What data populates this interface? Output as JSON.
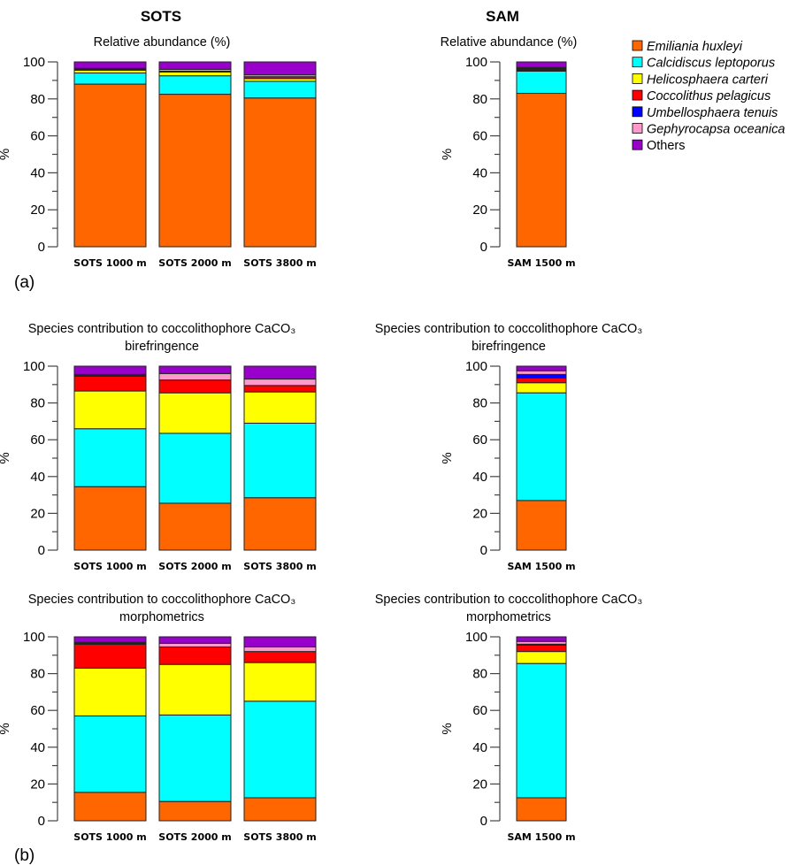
{
  "headings": {
    "sots": "SOTS",
    "sam": "SAM"
  },
  "panel_labels": {
    "a": "(a)",
    "b": "(b)"
  },
  "legend": [
    {
      "name": "Emiliania huxleyi",
      "color": "#FF6600",
      "italic": true
    },
    {
      "name": "Calcidiscus leptoporus",
      "color": "#00FFFF",
      "italic": true
    },
    {
      "name": "Helicosphaera carteri",
      "color": "#FFFF00",
      "italic": true
    },
    {
      "name": "Coccolithus pelagicus",
      "color": "#FF0000",
      "italic": true
    },
    {
      "name": "Umbellosphaera tenuis",
      "color": "#0000FF",
      "italic": true
    },
    {
      "name": "Gephyrocapsa oceanica",
      "color": "#FF99CC",
      "italic": true
    },
    {
      "name": "Others",
      "color": "#9900CC",
      "italic": false
    }
  ],
  "chart_data": [
    {
      "id": "a-sots",
      "type": "bar",
      "stacked": true,
      "title": [
        "Relative abundance (%)"
      ],
      "ylabel": "%",
      "ylim": [
        0,
        100
      ],
      "yticks": [
        0,
        20,
        40,
        60,
        80,
        100
      ],
      "categories": [
        "SOTS 1000 m",
        "SOTS 2000 m",
        "SOTS 3800 m"
      ],
      "series_values": [
        [
          88,
          6,
          1.5,
          0.5,
          0,
          0.5,
          3.5
        ],
        [
          82.5,
          10,
          2,
          0.5,
          0,
          1,
          4
        ],
        [
          80.5,
          9,
          1.5,
          1,
          0,
          1,
          7
        ]
      ]
    },
    {
      "id": "a-sam",
      "type": "bar",
      "stacked": true,
      "title": [
        "Relative abundance (%)"
      ],
      "ylabel": "%",
      "ylim": [
        0,
        100
      ],
      "yticks": [
        0,
        20,
        40,
        60,
        80,
        100
      ],
      "categories": [
        "SAM 1500 m"
      ],
      "series_values": [
        [
          83,
          12,
          0.5,
          0.5,
          0.5,
          0.5,
          3
        ]
      ]
    },
    {
      "id": "b1-sots",
      "type": "bar",
      "stacked": true,
      "title": [
        "Species contribution to coccolithophore CaCO₃",
        "birefringence"
      ],
      "ylabel": "%",
      "ylim": [
        0,
        100
      ],
      "yticks": [
        0,
        20,
        40,
        60,
        80,
        100
      ],
      "categories": [
        "SOTS 1000 m",
        "SOTS 2000 m",
        "SOTS 3800 m"
      ],
      "series_values": [
        [
          34.5,
          31.5,
          20.5,
          8,
          0.5,
          0.5,
          4.5
        ],
        [
          25.5,
          38,
          22,
          7,
          0,
          3.5,
          4
        ],
        [
          28.5,
          40.5,
          17,
          3.5,
          0,
          3.5,
          7
        ]
      ]
    },
    {
      "id": "b1-sam",
      "type": "bar",
      "stacked": true,
      "title": [
        "Species contribution to coccolithophore CaCO₃",
        "birefringence"
      ],
      "ylabel": "%",
      "ylim": [
        0,
        100
      ],
      "yticks": [
        0,
        20,
        40,
        60,
        80,
        100
      ],
      "categories": [
        "SAM 1500 m"
      ],
      "series_values": [
        [
          27,
          58.5,
          5.5,
          2.5,
          2,
          2,
          2.5
        ]
      ]
    },
    {
      "id": "b2-sots",
      "type": "bar",
      "stacked": true,
      "title": [
        "Species contribution to coccolithophore CaCO₃",
        "morphometrics"
      ],
      "ylabel": "%",
      "ylim": [
        0,
        100
      ],
      "yticks": [
        0,
        20,
        40,
        60,
        80,
        100
      ],
      "categories": [
        "SOTS 1000 m",
        "SOTS 2000 m",
        "SOTS 3800 m"
      ],
      "series_values": [
        [
          15.5,
          41.5,
          26,
          13,
          0.5,
          0.5,
          3
        ],
        [
          10.5,
          47,
          27.5,
          9.5,
          0,
          2,
          3.5
        ],
        [
          12.5,
          52.5,
          21,
          6,
          0,
          2.5,
          5.5
        ]
      ]
    },
    {
      "id": "b2-sam",
      "type": "bar",
      "stacked": true,
      "title": [
        "Species contribution to coccolithophore CaCO₃",
        "morphometrics"
      ],
      "ylabel": "%",
      "ylim": [
        0,
        100
      ],
      "yticks": [
        0,
        20,
        40,
        60,
        80,
        100
      ],
      "categories": [
        "SAM 1500 m"
      ],
      "series_values": [
        [
          12.5,
          73,
          6.5,
          3.5,
          0.5,
          1.5,
          2.5
        ]
      ]
    }
  ]
}
